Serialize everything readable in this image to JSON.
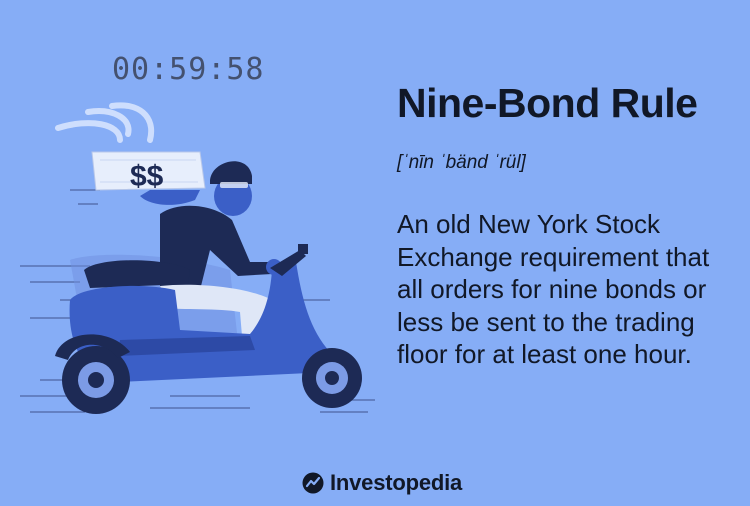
{
  "timer": {
    "text": "00:59:58"
  },
  "term": {
    "title": "Nine-Bond Rule",
    "pronunciation": "[ˈnīn ˈbänd ˈrül]",
    "definition": "An old New York Stock Exchange requirement that all orders for nine bonds or less be sent to the trading floor for at least one hour."
  },
  "illustration": {
    "subject": "scooter-rider",
    "package_label": "$$"
  },
  "brand": {
    "name": "Investopedia",
    "icon": "investopedia-logo-icon"
  },
  "colors": {
    "background": "#86adf6",
    "ink": "#111827",
    "scooter": "#3b5fc7",
    "dark_blue": "#1d2a55"
  }
}
